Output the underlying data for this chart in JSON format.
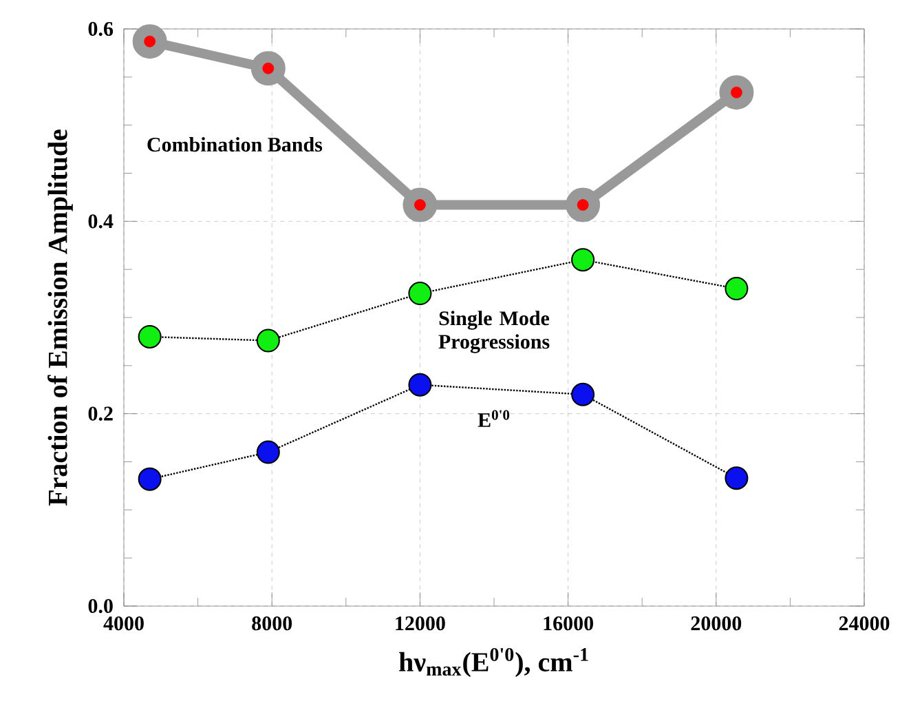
{
  "chart_data": {
    "type": "line",
    "xlabel": "hν$_{max}$(E$^{0'0}$), cm$^{-1}$",
    "ylabel": "Fraction of Emission Amplitude",
    "x": [
      4700,
      7900,
      12000,
      16400,
      20550
    ],
    "series": [
      {
        "name": "Combination Bands",
        "color": "#999999",
        "colors": [
          "#ff0000",
          "#ff0000",
          "#ff0000",
          "#ff0000",
          "#ff0000"
        ],
        "line_style": "solid",
        "values": [
          0.587,
          0.559,
          0.417,
          0.417,
          0.534
        ]
      },
      {
        "name": "Single Mode Progressions",
        "color": "#11ee11",
        "line_style": "dotted",
        "values": [
          0.28,
          0.276,
          0.325,
          0.36,
          0.33
        ]
      },
      {
        "name": "E$^{0'0}$",
        "color": "#0a10ee",
        "line_style": "dotted",
        "values": [
          0.132,
          0.16,
          0.23,
          0.22,
          0.133
        ]
      }
    ],
    "xlim": [
      4000,
      24000
    ],
    "ylim": [
      0,
      0.6
    ],
    "xticks": [
      4000,
      8000,
      12000,
      16000,
      20000,
      24000
    ],
    "yticks": [
      {
        "value": 0,
        "label": "0.0"
      },
      {
        "value": 0.2,
        "label": "0.2"
      },
      {
        "value": 0.4,
        "label": "0.4"
      },
      {
        "value": 0.6,
        "label": "0.6"
      }
    ],
    "grid": true,
    "marker": "circle"
  }
}
